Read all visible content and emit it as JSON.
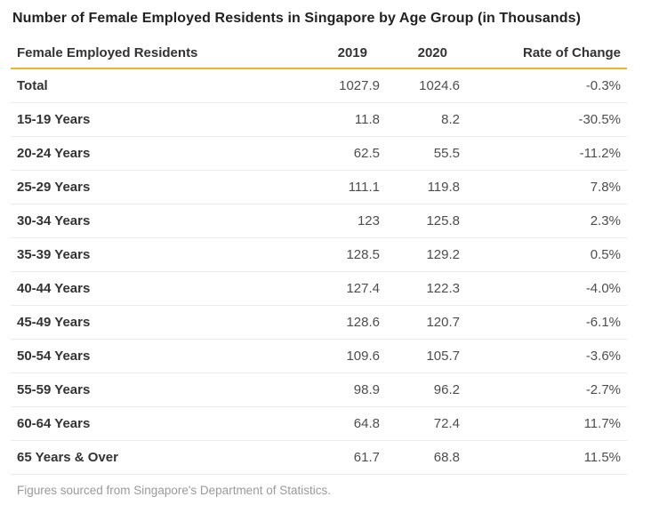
{
  "title": "Number of Female Employed Residents in Singapore by Age Group (in Thousands)",
  "footer_note": "Figures sourced from Singapore's Department of Statistics.",
  "colors": {
    "accent_rule": "#F0B32E",
    "row_divider": "#EAEAEA"
  },
  "table": {
    "columns": [
      "Female Employed Residents",
      "2019",
      "2020",
      "Rate of Change"
    ],
    "rows": [
      {
        "label": "Total",
        "y2019": "1027.9",
        "y2020": "1024.6",
        "rate": "-0.3%"
      },
      {
        "label": "15-19 Years",
        "y2019": "11.8",
        "y2020": "8.2",
        "rate": "-30.5%"
      },
      {
        "label": "20-24 Years",
        "y2019": "62.5",
        "y2020": "55.5",
        "rate": "-11.2%"
      },
      {
        "label": "25-29 Years",
        "y2019": "111.1",
        "y2020": "119.8",
        "rate": "7.8%"
      },
      {
        "label": "30-34 Years",
        "y2019": "123",
        "y2020": "125.8",
        "rate": "2.3%"
      },
      {
        "label": "35-39 Years",
        "y2019": "128.5",
        "y2020": "129.2",
        "rate": "0.5%"
      },
      {
        "label": "40-44 Years",
        "y2019": "127.4",
        "y2020": "122.3",
        "rate": "-4.0%"
      },
      {
        "label": "45-49 Years",
        "y2019": "128.6",
        "y2020": "120.7",
        "rate": "-6.1%"
      },
      {
        "label": "50-54 Years",
        "y2019": "109.6",
        "y2020": "105.7",
        "rate": "-3.6%"
      },
      {
        "label": "55-59 Years",
        "y2019": "98.9",
        "y2020": "96.2",
        "rate": "-2.7%"
      },
      {
        "label": "60-64 Years",
        "y2019": "64.8",
        "y2020": "72.4",
        "rate": "11.7%"
      },
      {
        "label": "65 Years & Over",
        "y2019": "61.7",
        "y2020": "68.8",
        "rate": "11.5%"
      }
    ]
  },
  "chart_data": {
    "type": "table",
    "title": "Number of Female Employed Residents in Singapore by Age Group (in Thousands)",
    "note": "Figures sourced from Singapore's Department of Statistics.",
    "categories": [
      "Total",
      "15-19 Years",
      "20-24 Years",
      "25-29 Years",
      "30-34 Years",
      "35-39 Years",
      "40-44 Years",
      "45-49 Years",
      "50-54 Years",
      "55-59 Years",
      "60-64 Years",
      "65 Years & Over"
    ],
    "series": [
      {
        "name": "2019",
        "values": [
          1027.9,
          11.8,
          62.5,
          111.1,
          123,
          128.5,
          127.4,
          128.6,
          109.6,
          98.9,
          64.8,
          61.7
        ]
      },
      {
        "name": "2020",
        "values": [
          1024.6,
          8.2,
          55.5,
          119.8,
          125.8,
          129.2,
          122.3,
          120.7,
          105.7,
          96.2,
          72.4,
          68.8
        ]
      },
      {
        "name": "Rate of Change",
        "values": [
          -0.3,
          -30.5,
          -11.2,
          7.8,
          2.3,
          0.5,
          -4.0,
          -6.1,
          -3.6,
          -2.7,
          11.7,
          11.5
        ],
        "unit": "%"
      }
    ],
    "layout": {
      "header_rule_color": "#F0B32E",
      "numeric_alignment": "right",
      "grid": "horizontal-dividers"
    }
  }
}
